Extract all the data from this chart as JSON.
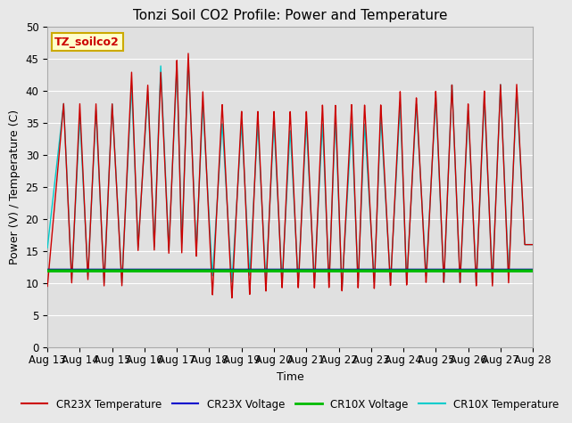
{
  "title": "Tonzi Soil CO2 Profile: Power and Temperature",
  "xlabel": "Time",
  "ylabel": "Power (V) / Temperature (C)",
  "ylim": [
    0,
    50
  ],
  "yticks": [
    0,
    5,
    10,
    15,
    20,
    25,
    30,
    35,
    40,
    45,
    50
  ],
  "fig_bg_color": "#e8e8e8",
  "plot_bg_color": "#e0e0e0",
  "grid_color": "#ffffff",
  "annotation_text": "TZ_soilco2",
  "annotation_bg": "#ffffcc",
  "annotation_border": "#ccaa00",
  "legend_items": [
    {
      "label": "CR23X Temperature",
      "color": "#cc0000",
      "lw": 1.5
    },
    {
      "label": "CR23X Voltage",
      "color": "#0000cc",
      "lw": 1.5
    },
    {
      "label": "CR10X Voltage",
      "color": "#00bb00",
      "lw": 2.0
    },
    {
      "label": "CR10X Temperature",
      "color": "#00cccc",
      "lw": 1.5
    }
  ],
  "x_start_day": 13,
  "x_end_day": 28,
  "x_tick_days": [
    13,
    14,
    15,
    16,
    17,
    18,
    19,
    20,
    21,
    22,
    23,
    24,
    25,
    26,
    27,
    28
  ],
  "x_tick_labels": [
    "Aug 13",
    "Aug 14",
    "Aug 15",
    "Aug 16",
    "Aug 17",
    "Aug 18",
    "Aug 19",
    "Aug 20",
    "Aug 21",
    "Aug 22",
    "Aug 23",
    "Aug 24",
    "Aug 25",
    "Aug 26",
    "Aug 27",
    "Aug 28"
  ],
  "cr23x_voltage_value": 12.0,
  "cr10x_voltage_value": 12.0,
  "cr23x_temp_color": "#cc0000",
  "cr10x_temp_color": "#00cccc",
  "cr23x_voltage_color": "#0000aa",
  "cr10x_voltage_color": "#00bb00",
  "peak_times": [
    13.5,
    14.0,
    14.5,
    15.0,
    15.6,
    16.1,
    16.5,
    17.0,
    17.35,
    17.8,
    18.4,
    19.0,
    19.5,
    20.0,
    20.5,
    21.0,
    21.5,
    21.9,
    22.4,
    22.8,
    23.3,
    23.9,
    24.4,
    25.0,
    25.5,
    26.0,
    26.5,
    27.0,
    27.5
  ],
  "peak_heights_cr23x": [
    38,
    38,
    38,
    38,
    43,
    41,
    43,
    45,
    46,
    40,
    38,
    37,
    37,
    37,
    37,
    37,
    38,
    38,
    38,
    38,
    38,
    40,
    39,
    40,
    41,
    38,
    40,
    41,
    41
  ],
  "trough_times": [
    13.0,
    13.75,
    14.25,
    14.75,
    15.3,
    15.8,
    16.3,
    16.75,
    17.15,
    17.6,
    18.1,
    18.7,
    19.25,
    19.75,
    20.25,
    20.75,
    21.25,
    21.7,
    22.1,
    22.6,
    23.1,
    23.6,
    24.1,
    24.7,
    25.25,
    25.75,
    26.25,
    26.75,
    27.25,
    27.75
  ],
  "trough_heights_cr23x": [
    9.5,
    10,
    10.5,
    9.5,
    9.5,
    15,
    15,
    14.5,
    14.5,
    14,
    8,
    7.5,
    8,
    8.5,
    9,
    9,
    9,
    9,
    8.5,
    9,
    9,
    9.5,
    9.5,
    10,
    10,
    10,
    9.5,
    9.5,
    10,
    16
  ]
}
